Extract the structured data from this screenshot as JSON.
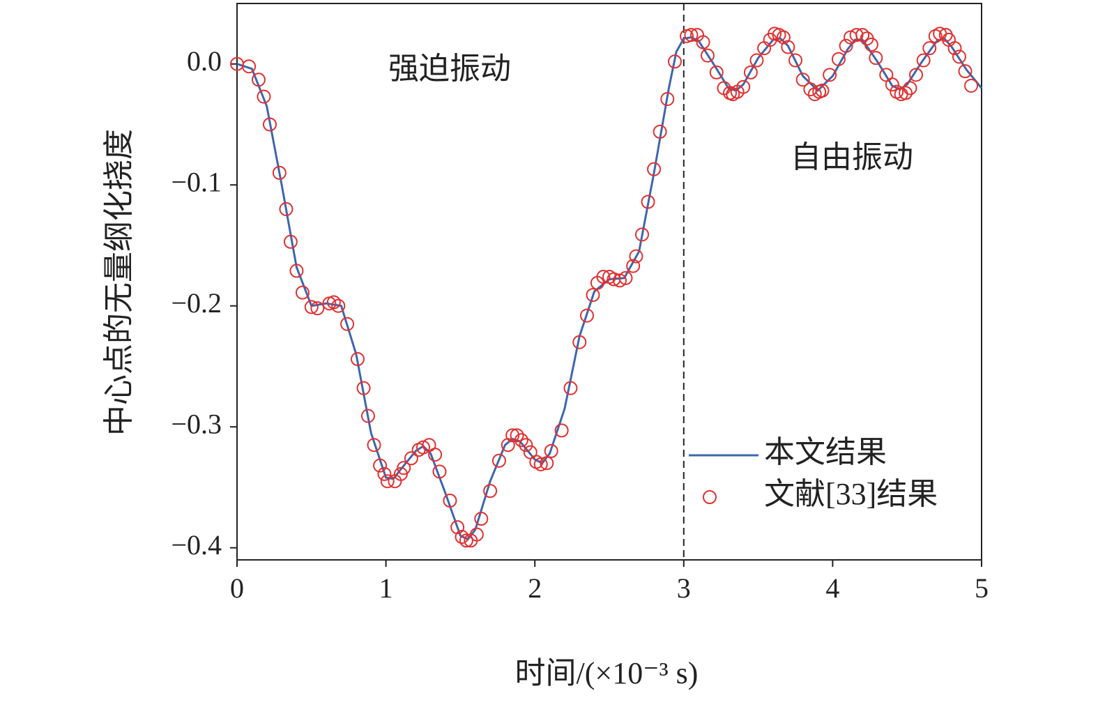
{
  "chart_data": {
    "type": "line-scatter",
    "x_label": "时间/(×10⁻³ s)",
    "y_label": "中心点的无量纲化挠度",
    "annotations": [
      "强迫振动",
      "自由振动"
    ],
    "vline": 3,
    "xlim": [
      0,
      5
    ],
    "ylim": [
      -0.41,
      0.05
    ],
    "xticks": [
      0,
      1,
      2,
      3,
      4,
      5
    ],
    "yticks": [
      {
        "value": 0,
        "label": "0.0"
      },
      {
        "value": -0.1,
        "label": "−0.1"
      },
      {
        "value": -0.2,
        "label": "−0.2"
      },
      {
        "value": -0.3,
        "label": "−0.3"
      },
      {
        "value": -0.4,
        "label": "−0.4"
      }
    ],
    "legend": "lower right",
    "series": [
      {
        "name": "本文结果",
        "color": "#3d66ae",
        "kind": "line",
        "x": [
          0,
          0.1,
          0.2,
          0.3,
          0.4,
          0.5,
          0.6,
          0.7,
          0.8,
          0.9,
          1.0,
          1.05,
          1.1,
          1.2,
          1.25,
          1.3,
          1.4,
          1.5,
          1.55,
          1.6,
          1.7,
          1.8,
          1.85,
          1.9,
          2.0,
          2.05,
          2.1,
          2.2,
          2.3,
          2.4,
          2.5,
          2.6,
          2.7,
          2.8,
          2.9,
          2.95,
          3.0,
          3.05,
          3.1,
          3.2,
          3.3,
          3.35,
          3.4,
          3.5,
          3.6,
          3.65,
          3.7,
          3.8,
          3.9,
          4.0,
          4.1,
          4.15,
          4.2,
          4.3,
          4.4,
          4.45,
          4.5,
          4.6,
          4.7,
          4.75,
          4.8,
          4.9,
          5.0
        ],
        "values": [
          0,
          -0.004,
          -0.035,
          -0.1,
          -0.168,
          -0.2,
          -0.198,
          -0.2,
          -0.24,
          -0.305,
          -0.342,
          -0.343,
          -0.335,
          -0.32,
          -0.316,
          -0.322,
          -0.355,
          -0.39,
          -0.393,
          -0.385,
          -0.345,
          -0.315,
          -0.31,
          -0.312,
          -0.327,
          -0.33,
          -0.322,
          -0.285,
          -0.225,
          -0.188,
          -0.178,
          -0.177,
          -0.155,
          -0.09,
          -0.02,
          0.01,
          0.021,
          0.022,
          0.019,
          0,
          -0.02,
          -0.022,
          -0.017,
          0.005,
          0.02,
          0.021,
          0.015,
          -0.01,
          -0.022,
          -0.01,
          0.012,
          0.02,
          0.02,
          0.002,
          -0.018,
          -0.021,
          -0.017,
          0.002,
          0.019,
          0.021,
          0.014,
          -0.005,
          -0.02
        ]
      },
      {
        "name": "文献[33]结果",
        "color": "#e03030",
        "kind": "scatter",
        "x": [
          0,
          0.08,
          0.145,
          0.18,
          0.22,
          0.285,
          0.33,
          0.36,
          0.4,
          0.44,
          0.5,
          0.54,
          0.62,
          0.65,
          0.68,
          0.74,
          0.81,
          0.85,
          0.88,
          0.92,
          0.96,
          0.99,
          1.01,
          1.06,
          1.1,
          1.12,
          1.17,
          1.22,
          1.25,
          1.29,
          1.33,
          1.36,
          1.43,
          1.48,
          1.51,
          1.54,
          1.57,
          1.61,
          1.64,
          1.7,
          1.76,
          1.82,
          1.85,
          1.88,
          1.91,
          1.94,
          1.97,
          2.01,
          2.04,
          2.08,
          2.11,
          2.18,
          2.24,
          2.3,
          2.35,
          2.39,
          2.42,
          2.46,
          2.5,
          2.53,
          2.57,
          2.61,
          2.66,
          2.68,
          2.72,
          2.76,
          2.8,
          2.84,
          2.89,
          2.94,
          3.02,
          3.05,
          3.09,
          3.13,
          3.16,
          3.22,
          3.27,
          3.31,
          3.33,
          3.36,
          3.4,
          3.45,
          3.49,
          3.54,
          3.58,
          3.61,
          3.64,
          3.67,
          3.7,
          3.75,
          3.8,
          3.85,
          3.88,
          3.91,
          3.93,
          3.98,
          4.04,
          4.09,
          4.12,
          4.16,
          4.2,
          4.23,
          4.26,
          4.29,
          4.36,
          4.4,
          4.43,
          4.46,
          4.49,
          4.52,
          4.56,
          4.61,
          4.65,
          4.69,
          4.72,
          4.76,
          4.78,
          4.82,
          4.85,
          4.89,
          4.93
        ],
        "values": [
          0,
          -0.002,
          -0.013,
          -0.027,
          -0.05,
          -0.09,
          -0.12,
          -0.147,
          -0.171,
          -0.189,
          -0.201,
          -0.202,
          -0.198,
          -0.197,
          -0.2,
          -0.215,
          -0.244,
          -0.268,
          -0.291,
          -0.315,
          -0.332,
          -0.339,
          -0.345,
          -0.345,
          -0.339,
          -0.334,
          -0.326,
          -0.319,
          -0.317,
          -0.315,
          -0.323,
          -0.337,
          -0.361,
          -0.383,
          -0.391,
          -0.394,
          -0.394,
          -0.389,
          -0.376,
          -0.353,
          -0.328,
          -0.315,
          -0.307,
          -0.307,
          -0.311,
          -0.315,
          -0.321,
          -0.329,
          -0.331,
          -0.33,
          -0.32,
          -0.303,
          -0.268,
          -0.23,
          -0.208,
          -0.191,
          -0.181,
          -0.176,
          -0.176,
          -0.178,
          -0.179,
          -0.177,
          -0.167,
          -0.159,
          -0.141,
          -0.114,
          -0.087,
          -0.056,
          -0.029,
          0.002,
          0.023,
          0.024,
          0.024,
          0.018,
          0.007,
          -0.007,
          -0.02,
          -0.024,
          -0.025,
          -0.023,
          -0.019,
          -0.007,
          0.003,
          0.013,
          0.02,
          0.025,
          0.024,
          0.022,
          0.014,
          0.003,
          -0.013,
          -0.021,
          -0.025,
          -0.023,
          -0.022,
          -0.009,
          0.004,
          0.015,
          0.022,
          0.024,
          0.024,
          0.021,
          0.016,
          0.005,
          -0.009,
          -0.017,
          -0.023,
          -0.025,
          -0.024,
          -0.02,
          -0.009,
          0.003,
          0.013,
          0.023,
          0.025,
          0.024,
          0.02,
          0.013,
          0.006,
          -0.006,
          -0.018
        ]
      }
    ]
  }
}
